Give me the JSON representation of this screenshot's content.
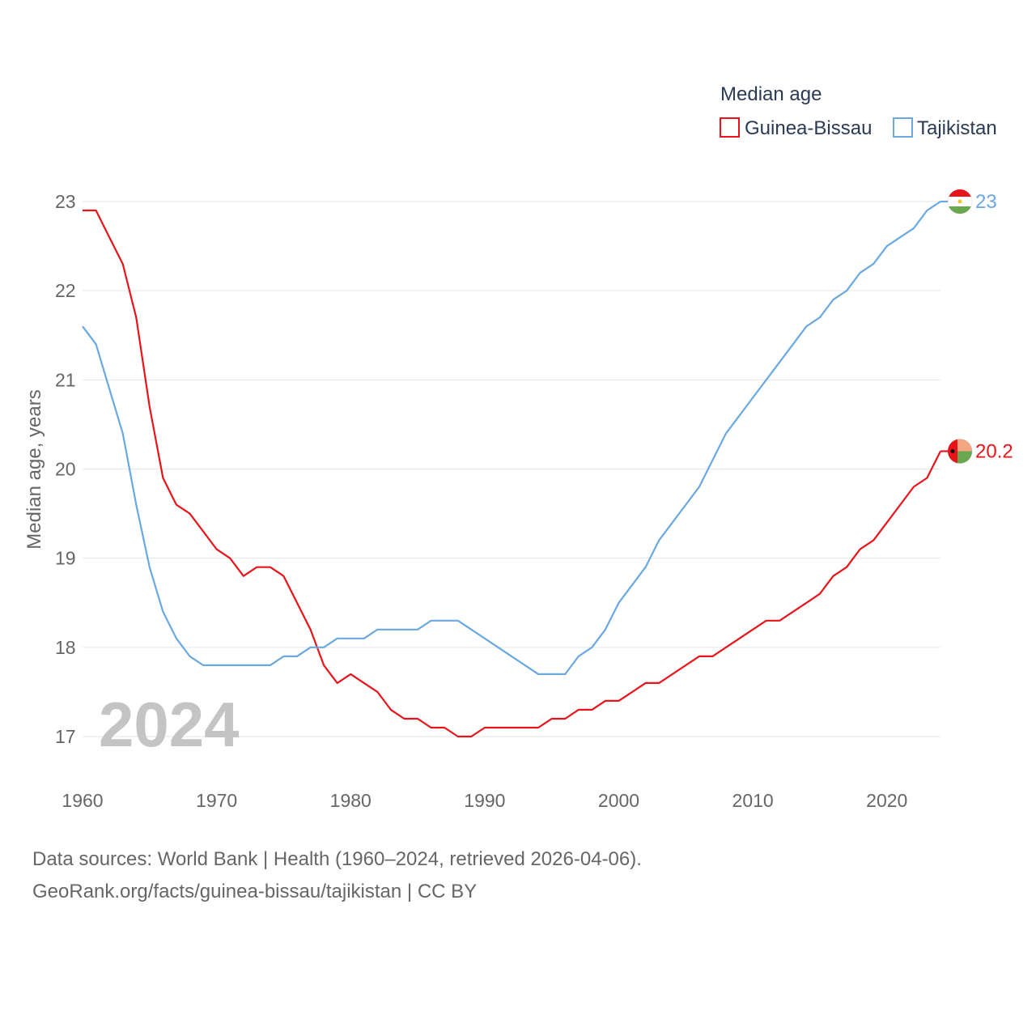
{
  "chart_data": {
    "type": "line",
    "title": "",
    "ylabel": "Median age, years",
    "xlabel": "",
    "xlim": [
      1960,
      2024
    ],
    "ylim": [
      17,
      23
    ],
    "x_ticks": [
      1960,
      1970,
      1980,
      1990,
      2000,
      2010,
      2020
    ],
    "y_ticks": [
      17,
      18,
      19,
      20,
      21,
      22,
      23
    ],
    "legend": {
      "title": "Median age",
      "position": "top-right"
    },
    "year_label": "2024",
    "x": [
      1960,
      1961,
      1962,
      1963,
      1964,
      1965,
      1966,
      1967,
      1968,
      1969,
      1970,
      1971,
      1972,
      1973,
      1974,
      1975,
      1976,
      1977,
      1978,
      1979,
      1980,
      1981,
      1982,
      1983,
      1984,
      1985,
      1986,
      1987,
      1988,
      1989,
      1990,
      1991,
      1992,
      1993,
      1994,
      1995,
      1996,
      1997,
      1998,
      1999,
      2000,
      2001,
      2002,
      2003,
      2004,
      2005,
      2006,
      2007,
      2008,
      2009,
      2010,
      2011,
      2012,
      2013,
      2014,
      2015,
      2016,
      2017,
      2018,
      2019,
      2020,
      2021,
      2022,
      2023,
      2024
    ],
    "series": [
      {
        "name": "Guinea-Bissau",
        "color": "#e8141a",
        "end_label": "20.2",
        "flag": "guinea-bissau-flag-icon",
        "values": [
          22.9,
          22.9,
          22.6,
          22.3,
          21.7,
          20.7,
          19.9,
          19.6,
          19.5,
          19.3,
          19.1,
          19.0,
          18.8,
          18.9,
          18.9,
          18.8,
          18.5,
          18.2,
          17.8,
          17.6,
          17.7,
          17.6,
          17.5,
          17.3,
          17.2,
          17.2,
          17.1,
          17.1,
          17.0,
          17.0,
          17.1,
          17.1,
          17.1,
          17.1,
          17.1,
          17.2,
          17.2,
          17.3,
          17.3,
          17.4,
          17.4,
          17.5,
          17.6,
          17.6,
          17.7,
          17.8,
          17.9,
          17.9,
          18.0,
          18.1,
          18.2,
          18.3,
          18.3,
          18.4,
          18.5,
          18.6,
          18.8,
          18.9,
          19.1,
          19.2,
          19.4,
          19.6,
          19.8,
          19.9,
          20.2
        ]
      },
      {
        "name": "Tajikistan",
        "color": "#6aa8e0",
        "end_label": "23",
        "flag": "tajikistan-flag-icon",
        "values": [
          21.6,
          21.4,
          20.9,
          20.4,
          19.6,
          18.9,
          18.4,
          18.1,
          17.9,
          17.8,
          17.8,
          17.8,
          17.8,
          17.8,
          17.8,
          17.9,
          17.9,
          18.0,
          18.0,
          18.1,
          18.1,
          18.1,
          18.2,
          18.2,
          18.2,
          18.2,
          18.3,
          18.3,
          18.3,
          18.2,
          18.1,
          18.0,
          17.9,
          17.8,
          17.7,
          17.7,
          17.7,
          17.9,
          18.0,
          18.2,
          18.5,
          18.7,
          18.9,
          19.2,
          19.4,
          19.6,
          19.8,
          20.1,
          20.4,
          20.6,
          20.8,
          21.0,
          21.2,
          21.4,
          21.6,
          21.7,
          21.9,
          22.0,
          22.2,
          22.3,
          22.5,
          22.6,
          22.7,
          22.9,
          23.0
        ]
      }
    ]
  },
  "footer": {
    "sources": "Data sources: World Bank | Health (1960–2024, retrieved 2026-04-06).",
    "link": "GeoRank.org/facts/guinea-bissau/tajikistan | CC BY"
  }
}
